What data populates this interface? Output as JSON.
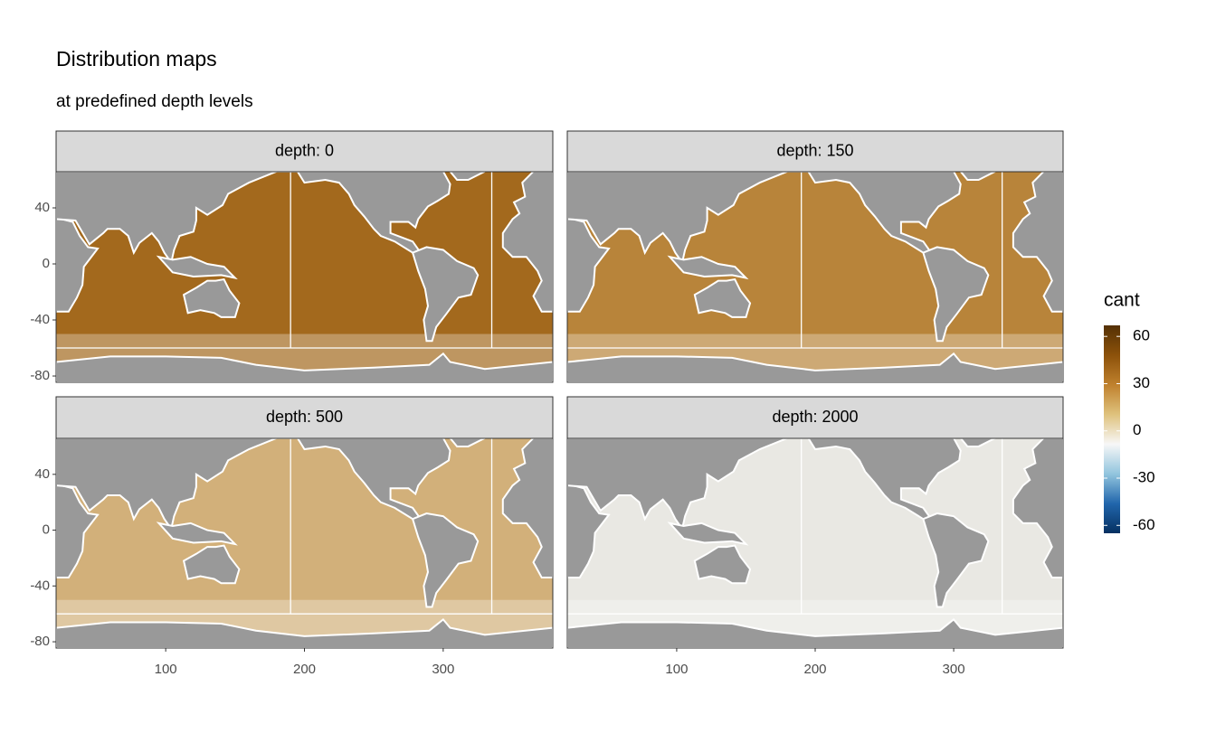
{
  "chart_data": {
    "type": "raster-map",
    "title": "Distribution maps",
    "subtitle": "at predefined depth levels",
    "facets": [
      {
        "label": "depth: 0",
        "color": "#a3691d"
      },
      {
        "label": "depth: 150",
        "color": "#b8843a"
      },
      {
        "label": "depth: 500",
        "color": "#d2b07a"
      },
      {
        "label": "depth: 2000",
        "color": "#e9e8e3"
      }
    ],
    "xlim": [
      21,
      379
    ],
    "xticks": [
      100,
      200,
      300
    ],
    "ylim": [
      -84.5,
      65.8
    ],
    "yticks": [
      40,
      0,
      -40,
      -80
    ],
    "boundary_lon": [
      190,
      335
    ],
    "boundary_lat": -60,
    "legend": {
      "title": "cant",
      "lim": [
        -65,
        67
      ],
      "ticks": [
        60,
        30,
        0,
        -30,
        -60
      ],
      "colors": [
        "#053061",
        "#2166ac",
        "#92c5de",
        "#f7f7f7",
        "#dfc27d",
        "#bf812d",
        "#8c510a",
        "#543005"
      ]
    }
  }
}
